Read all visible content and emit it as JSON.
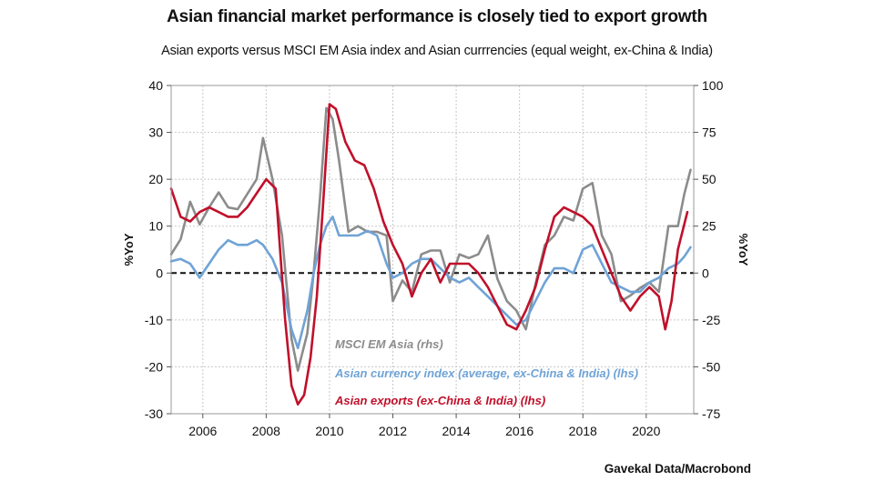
{
  "title": "Asian financial market performance is closely tied to export growth",
  "subtitle": "Asian exports versus MSCI EM Asia index and Asian currrencies (equal weight, ex-China & India)",
  "source": "Gavekal Data/Macrobond",
  "colors": {
    "msci": "#8c8c8c",
    "currency": "#6fa3d6",
    "exports": "#c0102a",
    "grid": "#c8c8c8",
    "zero_line": "#111111"
  },
  "chart_data": {
    "type": "line",
    "xlim": [
      2005.0,
      2021.5
    ],
    "x_ticks": [
      2006,
      2008,
      2010,
      2012,
      2014,
      2016,
      2018,
      2020
    ],
    "x_tick_labels": [
      "2006",
      "2008",
      "2010",
      "2012",
      "2014",
      "2016",
      "2018",
      "2020"
    ],
    "left_axis": {
      "label": "%YoY",
      "ylim": [
        -30,
        40
      ],
      "ticks": [
        40,
        30,
        20,
        10,
        0,
        -10,
        -20,
        -30
      ],
      "tick_labels": [
        "40",
        "30",
        "20",
        "10",
        "0",
        "-10",
        "-20",
        "-30"
      ]
    },
    "right_axis": {
      "label": "%YoY",
      "ylim": [
        -75,
        100
      ],
      "ticks": [
        100,
        75,
        50,
        25,
        0,
        -25,
        -50,
        -75
      ],
      "tick_labels": [
        "100",
        "75",
        "50",
        "25",
        "0",
        "-25",
        "-50",
        "-75"
      ]
    },
    "series": [
      {
        "name": "MSCI EM Asia (rhs)",
        "axis": "right",
        "color_key": "msci",
        "x": [
          2005.0,
          2005.3,
          2005.6,
          2005.9,
          2006.2,
          2006.5,
          2006.8,
          2007.1,
          2007.4,
          2007.7,
          2007.9,
          2008.2,
          2008.5,
          2008.8,
          2009.0,
          2009.3,
          2009.5,
          2009.7,
          2009.9,
          2010.1,
          2010.3,
          2010.6,
          2010.9,
          2011.2,
          2011.5,
          2011.8,
          2012.0,
          2012.3,
          2012.6,
          2012.9,
          2013.2,
          2013.5,
          2013.8,
          2014.1,
          2014.4,
          2014.7,
          2015.0,
          2015.3,
          2015.6,
          2015.9,
          2016.2,
          2016.5,
          2016.8,
          2017.1,
          2017.4,
          2017.7,
          2018.0,
          2018.3,
          2018.6,
          2018.9,
          2019.2,
          2019.5,
          2019.8,
          2020.1,
          2020.4,
          2020.7,
          2021.0,
          2021.2,
          2021.4
        ],
        "y": [
          10,
          18,
          38,
          26,
          35,
          43,
          35,
          34,
          42,
          50,
          72,
          50,
          20,
          -35,
          -52,
          -32,
          0,
          40,
          88,
          82,
          60,
          22,
          25,
          22,
          22,
          20,
          -15,
          -4,
          -10,
          10,
          12,
          12,
          -5,
          10,
          8,
          10,
          20,
          -3,
          -15,
          -20,
          -30,
          -6,
          15,
          20,
          30,
          28,
          45,
          48,
          20,
          10,
          -15,
          -12,
          -8,
          -5,
          -10,
          25,
          25,
          42,
          55
        ]
      },
      {
        "name": "Asian currency index (average, ex-China & India) (lhs)",
        "axis": "left",
        "color_key": "currency",
        "x": [
          2005.0,
          2005.3,
          2005.6,
          2005.9,
          2006.2,
          2006.5,
          2006.8,
          2007.1,
          2007.4,
          2007.7,
          2007.9,
          2008.2,
          2008.5,
          2008.8,
          2009.0,
          2009.3,
          2009.5,
          2009.7,
          2009.9,
          2010.1,
          2010.3,
          2010.6,
          2010.9,
          2011.2,
          2011.5,
          2011.8,
          2012.0,
          2012.3,
          2012.6,
          2012.9,
          2013.2,
          2013.5,
          2013.8,
          2014.1,
          2014.4,
          2014.7,
          2015.0,
          2015.3,
          2015.6,
          2015.9,
          2016.2,
          2016.5,
          2016.8,
          2017.1,
          2017.4,
          2017.7,
          2018.0,
          2018.3,
          2018.6,
          2018.9,
          2019.2,
          2019.5,
          2019.8,
          2020.1,
          2020.4,
          2020.7,
          2021.0,
          2021.2,
          2021.4
        ],
        "y": [
          2.5,
          3,
          2,
          -1,
          2,
          5,
          7,
          6,
          6,
          7,
          6,
          3,
          -2,
          -12,
          -16,
          -8,
          0,
          6,
          10,
          12,
          8,
          8,
          8,
          9,
          8,
          2,
          -1,
          0,
          2,
          3,
          3,
          1,
          -1,
          -2,
          -1,
          -3,
          -5,
          -7,
          -9,
          -11,
          -10,
          -6,
          -2,
          1,
          1,
          0,
          5,
          6,
          2,
          -2,
          -3,
          -4,
          -4,
          -2,
          -1,
          1,
          2,
          3.5,
          5.5
        ]
      },
      {
        "name": "Asian exports (ex-China & India) (lhs)",
        "axis": "left",
        "color_key": "exports",
        "x": [
          2005.0,
          2005.3,
          2005.6,
          2005.9,
          2006.2,
          2006.5,
          2006.8,
          2007.1,
          2007.4,
          2007.7,
          2008.0,
          2008.3,
          2008.6,
          2008.8,
          2009.0,
          2009.2,
          2009.4,
          2009.6,
          2009.8,
          2010.0,
          2010.2,
          2010.5,
          2010.8,
          2011.1,
          2011.4,
          2011.7,
          2012.0,
          2012.3,
          2012.6,
          2012.9,
          2013.2,
          2013.5,
          2013.8,
          2014.1,
          2014.4,
          2014.7,
          2015.0,
          2015.3,
          2015.6,
          2015.9,
          2016.2,
          2016.5,
          2016.8,
          2017.1,
          2017.4,
          2017.7,
          2018.0,
          2018.3,
          2018.6,
          2018.9,
          2019.2,
          2019.5,
          2019.8,
          2020.1,
          2020.4,
          2020.6,
          2020.8,
          2021.0,
          2021.3
        ],
        "y": [
          18,
          12,
          11,
          13,
          14,
          13,
          12,
          12,
          14,
          17,
          20,
          18,
          -10,
          -24,
          -28,
          -26,
          -18,
          -5,
          15,
          36,
          35,
          28,
          24,
          23,
          18,
          11,
          6,
          2,
          -5,
          0,
          3,
          -2,
          2,
          2,
          2,
          0,
          -3,
          -7,
          -11,
          -12,
          -8,
          -3,
          5,
          12,
          14,
          13,
          12,
          10,
          5,
          0,
          -5,
          -8,
          -5,
          -3,
          -5,
          -12,
          -6,
          5,
          13
        ]
      }
    ],
    "zero_line": "dashed",
    "legend": [
      {
        "label": "MSCI EM Asia (rhs)",
        "color_key": "msci"
      },
      {
        "label": "Asian currency index (average, ex-China & India) (lhs)",
        "color_key": "currency"
      },
      {
        "label": "Asian exports (ex-China & India) (lhs)",
        "color_key": "exports"
      }
    ]
  }
}
